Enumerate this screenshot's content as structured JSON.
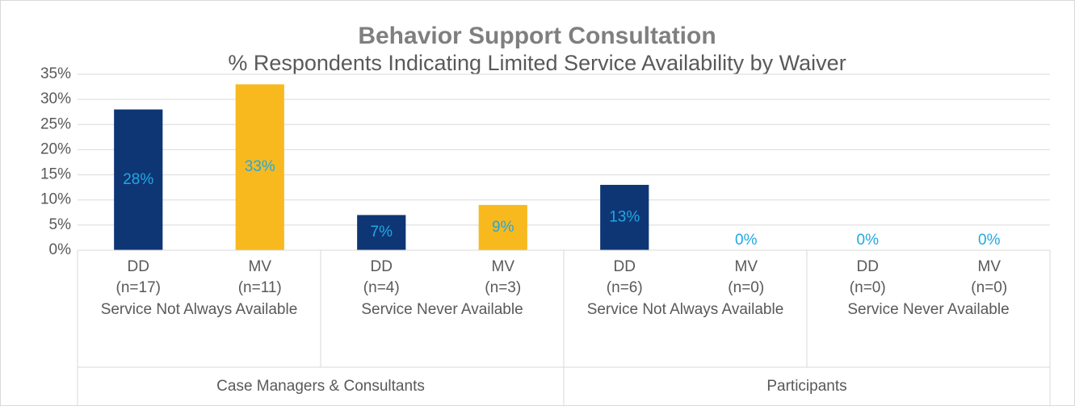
{
  "chart_data": {
    "type": "bar",
    "title": "Behavior Support Consultation",
    "subtitle": "% Respondents Indicating Limited Service Availability by Waiver",
    "categories": [
      [
        "DD",
        "(n=17)"
      ],
      [
        "MV",
        "(n=11)"
      ],
      [
        "DD",
        "(n=4)"
      ],
      [
        "MV",
        "(n=3)"
      ],
      [
        "DD",
        "(n=6)"
      ],
      [
        "MV",
        "(n=0)"
      ],
      [
        "DD",
        "(n=0)"
      ],
      [
        "MV",
        "(n=0)"
      ]
    ],
    "groups": [
      "Service Not Always Available",
      "Service Never Available",
      "Service Not Always Available",
      "Service Never Available"
    ],
    "supergroups": [
      "Case Managers & Consultants",
      "Participants"
    ],
    "values": [
      28,
      33,
      7,
      9,
      13,
      0,
      0,
      0
    ],
    "value_labels": [
      "28%",
      "33%",
      "7%",
      "9%",
      "13%",
      "0%",
      "0%",
      "0%"
    ],
    "colors": [
      "#0e3675",
      "#f8b91f",
      "#0e3675",
      "#f8b91f",
      "#0e3675",
      "#f8b91f",
      "#0e3675",
      "#f8b91f"
    ],
    "label_color": "#21a8e2",
    "ylim": [
      0,
      35
    ],
    "yticks": [
      {
        "value": 0,
        "label": "0%"
      },
      {
        "value": 5,
        "label": "5%"
      },
      {
        "value": 10,
        "label": "10%"
      },
      {
        "value": 15,
        "label": "15%"
      },
      {
        "value": 20,
        "label": "20%"
      },
      {
        "value": 25,
        "label": "25%"
      },
      {
        "value": 30,
        "label": "30%"
      },
      {
        "value": 35,
        "label": "35%"
      }
    ],
    "grid": true
  }
}
